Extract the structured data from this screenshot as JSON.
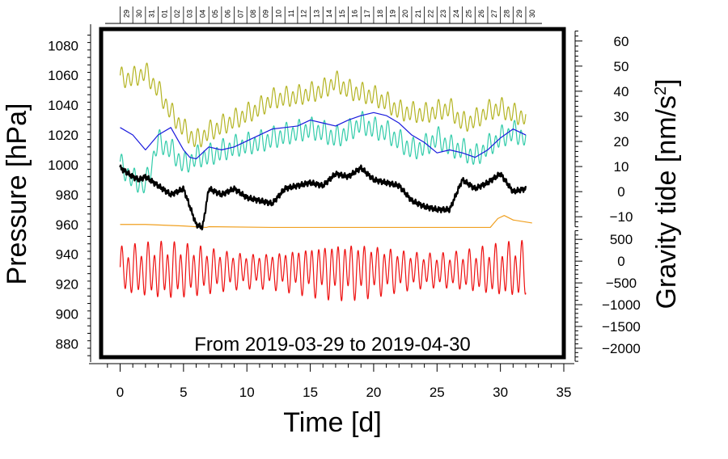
{
  "chart_data": {
    "type": "line",
    "title": "",
    "annotation": "From 2019-03-29 to 2019-04-30",
    "xlabel": "Time [d]",
    "ylabel_left": "Pressure [hPa]",
    "ylabel_right_base": "Gravity tide [nm/s",
    "ylabel_right_sup": "2",
    "ylabel_right_end": "]",
    "xlim": [
      -1.5,
      35
    ],
    "ylim_left": [
      871,
      1091
    ],
    "x_ticks": [
      0,
      5,
      10,
      15,
      20,
      25,
      30,
      35
    ],
    "x_tick_labels": [
      "0",
      "5",
      "10",
      "15",
      "20",
      "25",
      "30",
      "35"
    ],
    "y_left_ticks": [
      880,
      900,
      920,
      940,
      960,
      980,
      1000,
      1020,
      1040,
      1060,
      1080
    ],
    "y_left_tick_labels": [
      "880",
      "900",
      "920",
      "940",
      "960",
      "980",
      "1000",
      "1020",
      "1040",
      "1060",
      "1080"
    ],
    "y_right_upper_ticks": [
      60,
      50,
      40,
      30,
      20,
      10,
      0,
      -10
    ],
    "y_right_upper_tick_labels": [
      "60",
      "50",
      "40",
      "30",
      "20",
      "10",
      "0",
      "−10"
    ],
    "y_right_upper_map": {
      "value_a": 60,
      "pressure_a": 1083,
      "value_b": 0,
      "pressure_b": 982
    },
    "y_right_lower_ticks": [
      500,
      0,
      -500,
      -1000,
      -1500,
      -2000
    ],
    "y_right_lower_tick_labels": [
      "500",
      "0",
      "−500",
      "−1000",
      "−1500",
      "−2000"
    ],
    "y_right_lower_map": {
      "value_a": 500,
      "pressure_a": 950,
      "value_b": -2000,
      "pressure_b": 877
    },
    "top_dates": [
      "29",
      "30",
      "31",
      "01",
      "02",
      "03",
      "04",
      "05",
      "06",
      "07",
      "08",
      "09",
      "10",
      "11",
      "12",
      "13",
      "14",
      "15",
      "16",
      "17",
      "18",
      "19",
      "20",
      "21",
      "22",
      "23",
      "24",
      "25",
      "26",
      "27",
      "28",
      "29",
      "30"
    ],
    "top_date_start_day": 0.5,
    "series": [
      {
        "name": "gravity-tide-red",
        "color": "#ee1111",
        "model": "tide",
        "x_range": [
          0,
          32
        ],
        "center": 929,
        "amplitude": 15,
        "amp_variation": 3.5,
        "period": 0.5175,
        "step": 0.02
      },
      {
        "name": "gravity-residual-orange",
        "color": "#f0a020",
        "x": [
          0,
          2,
          5,
          6.8,
          7,
          12,
          18,
          24,
          28,
          29.2,
          29.5,
          29.8,
          30.3,
          31,
          32.5
        ],
        "y": [
          960,
          960,
          959,
          958,
          958.5,
          958,
          958,
          958,
          958,
          958,
          961,
          964,
          966,
          963,
          961
        ]
      },
      {
        "name": "pressure-olive",
        "color": "#b4b423",
        "model": "wavy",
        "x_range": [
          0,
          32
        ],
        "x": [
          0,
          1,
          2,
          3,
          4,
          5,
          6,
          7,
          9,
          11,
          12,
          14,
          16,
          17,
          18,
          19,
          20,
          21,
          22,
          24,
          26,
          27,
          28,
          29,
          30,
          31,
          32
        ],
        "y": [
          1058,
          1058,
          1062,
          1050,
          1035,
          1024,
          1016,
          1022,
          1030,
          1038,
          1044,
          1046,
          1050,
          1056,
          1050,
          1048,
          1046,
          1042,
          1036,
          1034,
          1038,
          1028,
          1030,
          1036,
          1038,
          1034,
          1032
        ],
        "wave_amp": 5.5,
        "period": 0.5,
        "step": 0.02
      },
      {
        "name": "pressure-teal",
        "color": "#33ccaa",
        "model": "wavy",
        "x_range": [
          0,
          32
        ],
        "x": [
          0,
          1,
          2,
          3,
          4,
          5,
          6,
          7,
          9,
          11,
          13,
          15,
          16,
          17,
          18,
          19,
          20,
          21,
          22,
          23,
          24,
          25,
          26,
          27,
          28,
          29,
          30,
          31,
          32
        ],
        "y": [
          1000,
          990,
          986,
          1016,
          1010,
          1000,
          1005,
          1006,
          1012,
          1015,
          1020,
          1024,
          1022,
          1018,
          1022,
          1028,
          1024,
          1022,
          1016,
          1010,
          1012,
          1018,
          1012,
          1010,
          1005,
          1012,
          1018,
          1022,
          1018
        ],
        "wave_amp": 6,
        "period": 0.5,
        "step": 0.02
      },
      {
        "name": "pressure-blue",
        "color": "#1a1add",
        "x": [
          0,
          1,
          2,
          3,
          4,
          5,
          5.5,
          6,
          7,
          8,
          9,
          10,
          11,
          12,
          13,
          14,
          15,
          16,
          17,
          18,
          19,
          20,
          21,
          22,
          23,
          24,
          25,
          26,
          27,
          28,
          29,
          30,
          31,
          32
        ],
        "y": [
          1025,
          1020,
          1010,
          1020,
          1025,
          1010,
          1005,
          1004,
          1012,
          1010,
          1012,
          1016,
          1020,
          1024,
          1025,
          1026,
          1030,
          1028,
          1026,
          1030,
          1033,
          1035,
          1033,
          1028,
          1020,
          1015,
          1008,
          1010,
          1008,
          1005,
          1010,
          1018,
          1024,
          1020
        ]
      },
      {
        "name": "residual-black",
        "color": "#000000",
        "model": "jitter",
        "x_range": [
          0,
          32
        ],
        "x": [
          0,
          1,
          1.5,
          2,
          3,
          4,
          5,
          5.5,
          6,
          6.5,
          7,
          8,
          9,
          10,
          11,
          12,
          13,
          14,
          15,
          16,
          17,
          18,
          19,
          20,
          21,
          22,
          23,
          24,
          25,
          26,
          27,
          28,
          29,
          30,
          31,
          32
        ],
        "y": [
          998,
          992,
          990,
          992,
          986,
          980,
          984,
          972,
          960,
          958,
          984,
          980,
          984,
          978,
          976,
          974,
          984,
          986,
          988,
          986,
          994,
          992,
          998,
          990,
          988,
          986,
          976,
          972,
          970,
          970,
          990,
          984,
          988,
          994,
          982,
          984
        ],
        "wave_amp": 1.2,
        "period": 0.5,
        "step": 0.02
      }
    ]
  }
}
